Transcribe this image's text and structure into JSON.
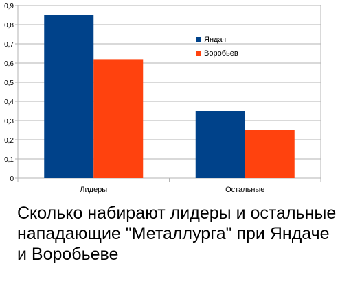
{
  "chart_data": {
    "type": "bar",
    "categories": [
      "Лидеры",
      "Остальные"
    ],
    "series": [
      {
        "name": "Яндач",
        "values": [
          0.85,
          0.35
        ],
        "color": "#00428a"
      },
      {
        "name": "Воробьев",
        "values": [
          0.62,
          0.25
        ],
        "color": "#ff420e"
      }
    ],
    "ylim": [
      0,
      0.9
    ],
    "yticks": [
      "0",
      "0,1",
      "0,2",
      "0,3",
      "0,4",
      "0,5",
      "0,6",
      "0,7",
      "0,8",
      "0,9"
    ],
    "grid": true,
    "legend": "top-right"
  },
  "caption": "Сколько набирают лидеры и остальные нападающие \"Металлурга\" при Яндаче и Воробьеве"
}
